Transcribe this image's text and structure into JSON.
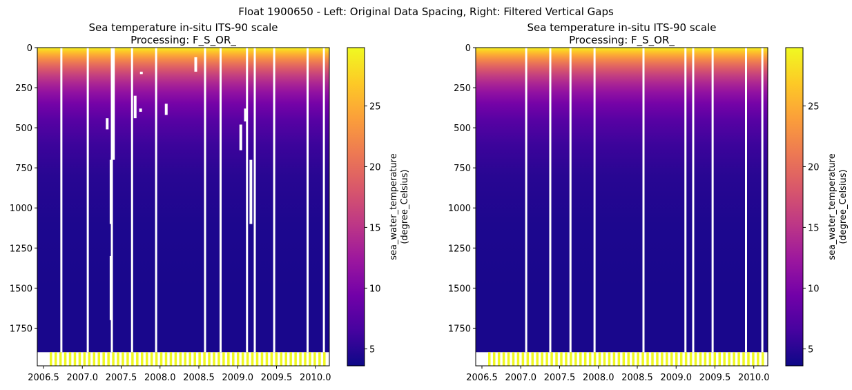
{
  "figure_title": "Float 1900650 - Left: Original Data Spacing, Right: Filtered Vertical Gaps",
  "chart_data": [
    {
      "type": "heatmap",
      "panel": "left",
      "title_line1": "Sea temperature in-situ ITS-90 scale",
      "title_line2": "Processing: F_S_OR_",
      "xlim": [
        2006.42,
        2010.18
      ],
      "ylim": [
        1985,
        0
      ],
      "x_ticks": [
        2006.5,
        2007.0,
        2007.5,
        2008.0,
        2008.5,
        2009.0,
        2009.5,
        2010.0
      ],
      "x_tick_labels": [
        "2006.5",
        "2007.0",
        "2007.5",
        "2008.0",
        "2008.5",
        "2009.0",
        "2009.5",
        "2010.0"
      ],
      "y_ticks": [
        0,
        250,
        500,
        750,
        1000,
        1250,
        1500,
        1750
      ],
      "y_tick_labels": [
        "0",
        "250",
        "500",
        "750",
        "1000",
        "1250",
        "1500",
        "1750"
      ],
      "xlabel": "",
      "ylabel": "",
      "data_max_depth": 1900,
      "full_gap_x": [
        2006.73,
        2007.07,
        2007.38,
        2007.64,
        2007.95,
        2008.58,
        2008.78,
        2009.12,
        2009.22,
        2009.47,
        2009.9,
        2010.11
      ],
      "partial_gaps": [
        {
          "x": 2007.4,
          "y0": 0,
          "y1": 700
        },
        {
          "x": 2007.37,
          "y0": 700,
          "y1": 1100
        },
        {
          "x": 2007.37,
          "y0": 1300,
          "y1": 1700
        },
        {
          "x": 2009.17,
          "y0": 700,
          "y1": 1100
        },
        {
          "x": 2007.32,
          "y0": 440,
          "y1": 510
        },
        {
          "x": 2007.68,
          "y0": 300,
          "y1": 440
        },
        {
          "x": 2007.75,
          "y0": 380,
          "y1": 400
        },
        {
          "x": 2008.08,
          "y0": 350,
          "y1": 420
        },
        {
          "x": 2008.46,
          "y0": 60,
          "y1": 150
        },
        {
          "x": 2009.04,
          "y0": 480,
          "y1": 640
        },
        {
          "x": 2009.1,
          "y0": 380,
          "y1": 460
        },
        {
          "x": 2007.76,
          "y0": 150,
          "y1": 165
        }
      ],
      "colorbar": {
        "label_line1": "sea_water_temperature",
        "label_line2": "(degree_Celsius)",
        "vmin": 3.6,
        "vmax": 29.8,
        "ticks": [
          5,
          10,
          15,
          20,
          25
        ],
        "tick_labels": [
          "5",
          "10",
          "15",
          "20",
          "25"
        ],
        "colormap": "plasma"
      }
    },
    {
      "type": "heatmap",
      "panel": "right",
      "title_line1": "Sea temperature in-situ ITS-90 scale",
      "title_line2": "Processing: F_S_OR_",
      "xlim": [
        2006.42,
        2010.18
      ],
      "ylim": [
        1985,
        0
      ],
      "x_ticks": [
        2006.5,
        2007.0,
        2007.5,
        2008.0,
        2008.5,
        2009.0,
        2009.5,
        2010.0
      ],
      "x_tick_labels": [
        "2006.5",
        "2007.0",
        "2007.5",
        "2008.0",
        "2008.5",
        "2009.0",
        "2009.5",
        "2010.0"
      ],
      "y_ticks": [
        0,
        250,
        500,
        750,
        1000,
        1250,
        1500,
        1750
      ],
      "y_tick_labels": [
        "0",
        "250",
        "500",
        "750",
        "1000",
        "1250",
        "1500",
        "1750"
      ],
      "xlabel": "",
      "ylabel": "",
      "data_max_depth": 1900,
      "full_gap_x": [
        2007.07,
        2007.38,
        2007.64,
        2007.95,
        2008.58,
        2009.12,
        2009.22,
        2009.47,
        2009.9,
        2010.11
      ],
      "partial_gaps": [],
      "colorbar": {
        "label_line1": "sea_water_temperature",
        "label_line2": "(degree_Celsius)",
        "vmin": 3.6,
        "vmax": 29.8,
        "ticks": [
          5,
          10,
          15,
          20,
          25
        ],
        "tick_labels": [
          "5",
          "10",
          "15",
          "20",
          "25"
        ],
        "colormap": "plasma"
      }
    }
  ]
}
